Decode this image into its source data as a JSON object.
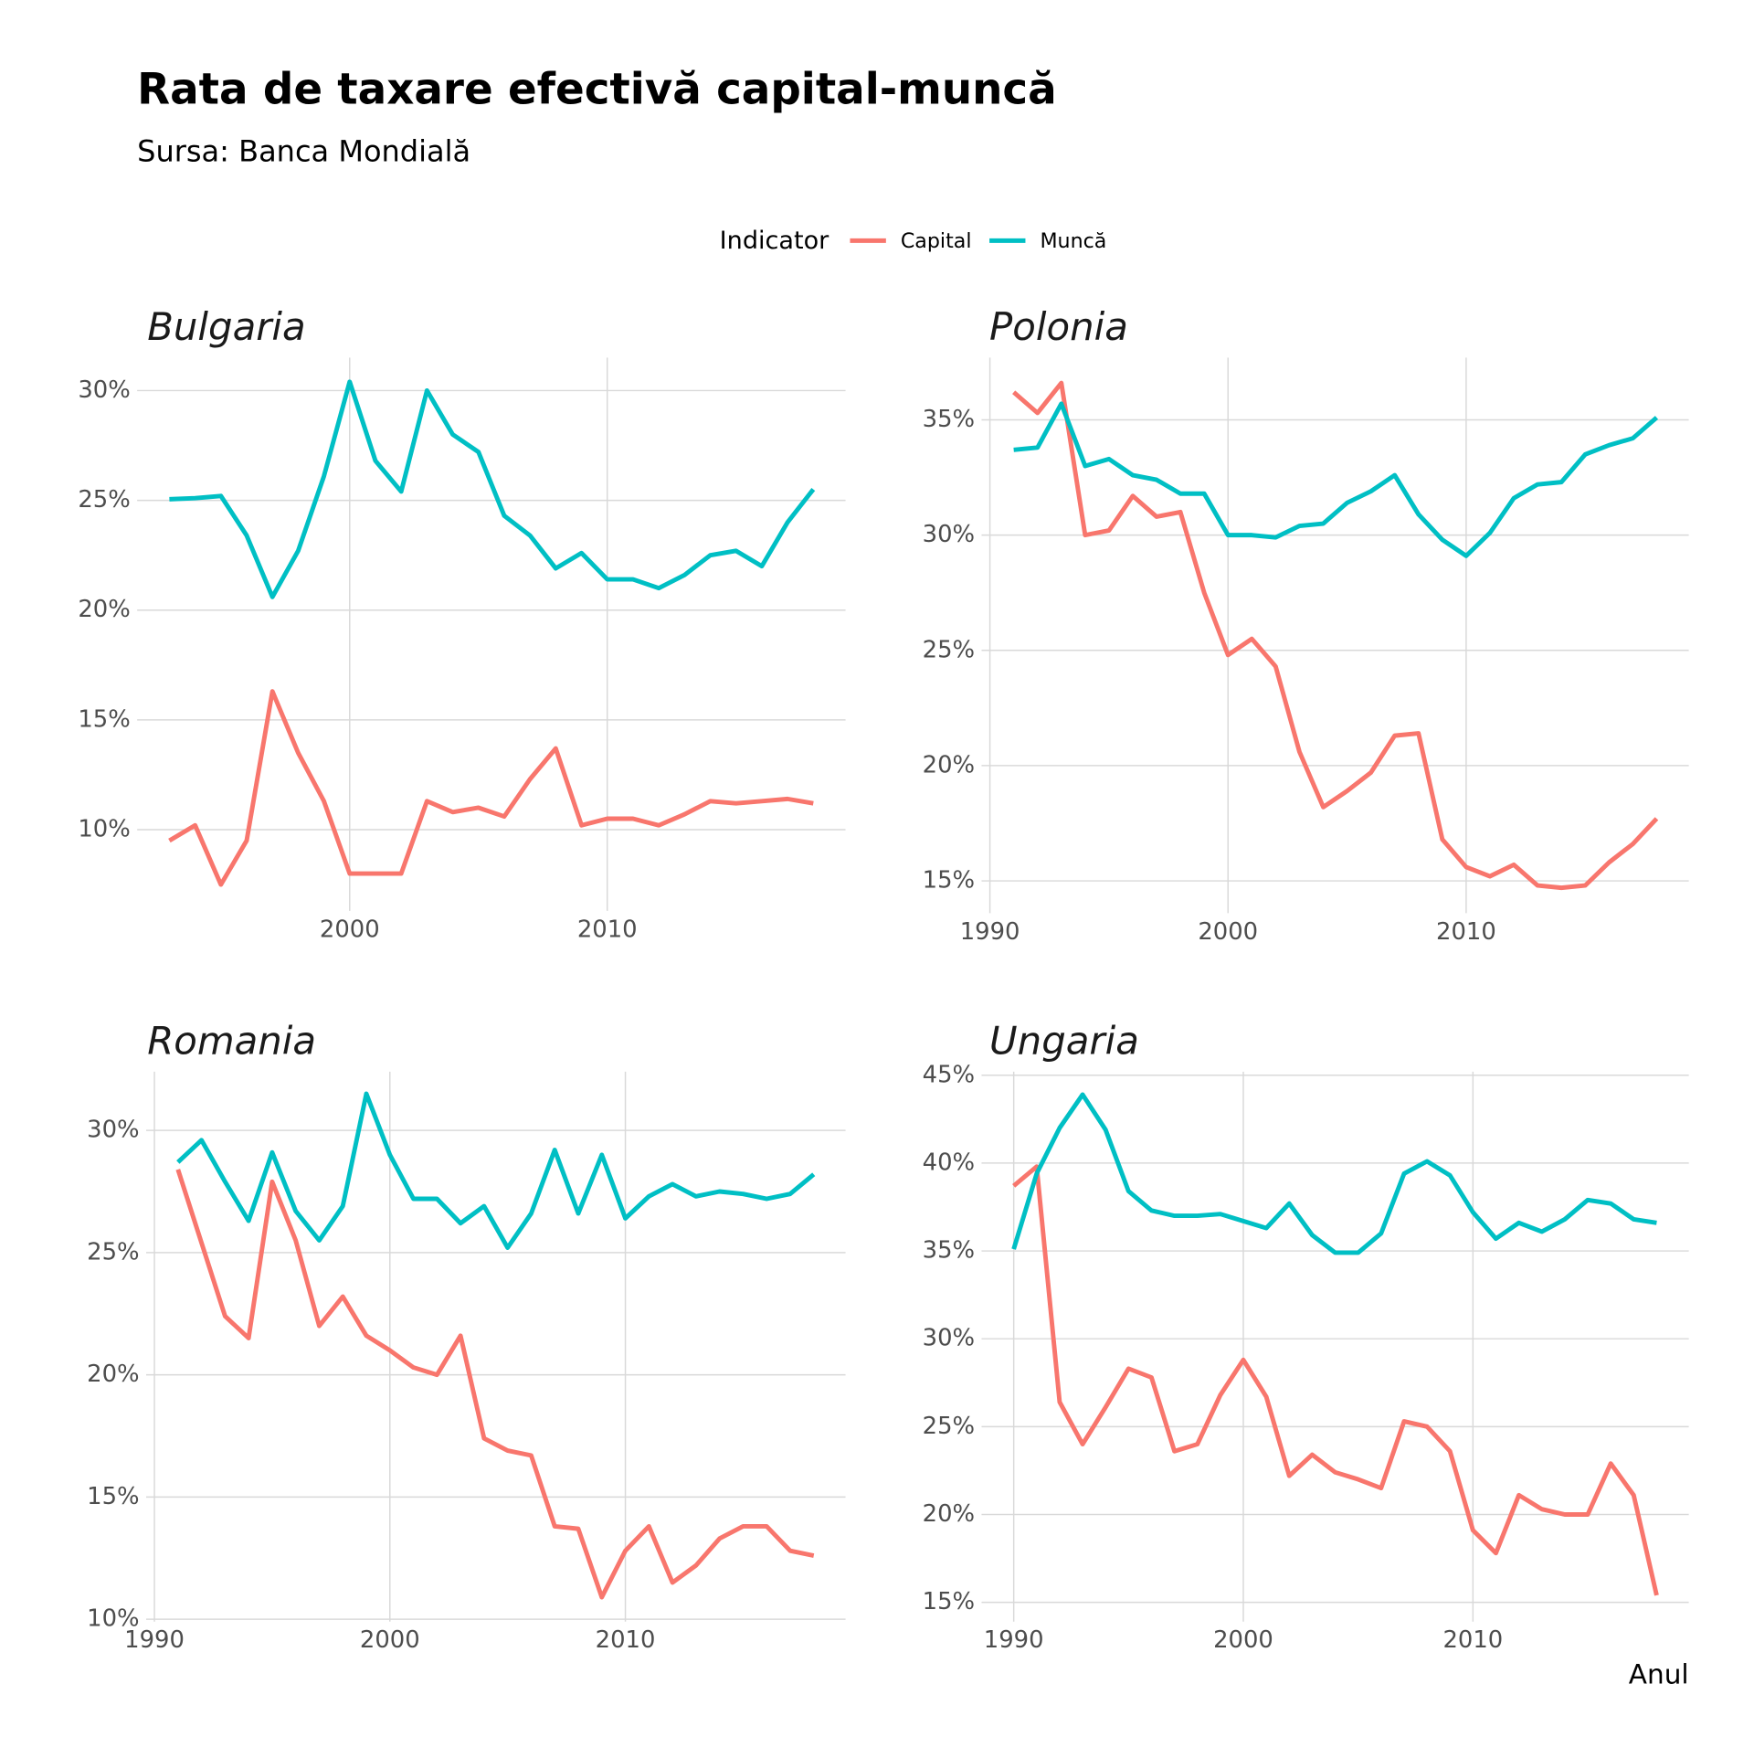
{
  "title": "Rata de taxare efectivă capital-muncă",
  "subtitle": "Sursa: Banca Mondială",
  "x_label": "Anul",
  "legend": {
    "title": "Indicator",
    "entries": [
      {
        "name": "Capital",
        "color": "#f8766d"
      },
      {
        "name": "Muncă",
        "color": "#00bfc4"
      }
    ]
  },
  "chart_data": [
    {
      "type": "line",
      "title": "Bulgaria",
      "x": [
        1993,
        1994,
        1995,
        1996,
        1997,
        1998,
        1999,
        2000,
        2001,
        2002,
        2003,
        2004,
        2005,
        2006,
        2007,
        2008,
        2009,
        2010,
        2011,
        2012,
        2013,
        2014,
        2015,
        2016,
        2017,
        2018
      ],
      "series": [
        {
          "values": [
            9.5,
            10.2,
            7.5,
            9.5,
            16.3,
            13.5,
            11.3,
            8.0,
            8.0,
            8.0,
            11.3,
            10.8,
            11.0,
            10.6,
            12.3,
            13.7,
            10.2,
            10.5,
            10.5,
            10.2,
            10.7,
            11.3,
            11.2,
            11.3,
            11.4,
            11.2
          ]
        },
        {
          "values": [
            25.05,
            25.1,
            25.2,
            23.4,
            20.6,
            22.7,
            26.1,
            30.4,
            26.8,
            25.4,
            30.0,
            28.0,
            27.2,
            24.3,
            23.4,
            21.9,
            22.6,
            21.4,
            21.4,
            21.0,
            21.6,
            22.5,
            22.7,
            22.0,
            24.0,
            25.5
          ]
        }
      ],
      "xlim": [
        1991.75,
        2019.25
      ],
      "ylim": [
        6.3,
        31.5
      ],
      "xticks": [
        2000,
        2010
      ],
      "yticks": [
        {
          "value": 10,
          "label": "10%"
        },
        {
          "value": 15,
          "label": "15%"
        },
        {
          "value": 20,
          "label": "20%"
        },
        {
          "value": 25,
          "label": "25%"
        },
        {
          "value": 30,
          "label": "30%"
        }
      ],
      "grid": true
    },
    {
      "type": "line",
      "title": "Polonia",
      "x": [
        1991,
        1992,
        1993,
        1994,
        1995,
        1996,
        1997,
        1998,
        1999,
        2000,
        2001,
        2002,
        2003,
        2004,
        2005,
        2006,
        2007,
        2008,
        2009,
        2010,
        2011,
        2012,
        2013,
        2014,
        2015,
        2016,
        2017,
        2018
      ],
      "series": [
        {
          "values": [
            36.2,
            35.3,
            36.6,
            30.0,
            30.2,
            31.7,
            30.8,
            31.0,
            27.5,
            24.8,
            25.5,
            24.3,
            20.6,
            18.2,
            18.9,
            19.7,
            21.3,
            21.4,
            16.8,
            15.6,
            15.2,
            15.7,
            14.8,
            14.7,
            14.8,
            15.8,
            16.6,
            17.7
          ]
        },
        {
          "values": [
            33.7,
            33.8,
            35.7,
            33.0,
            33.3,
            32.6,
            32.4,
            31.8,
            31.8,
            30.0,
            30.0,
            29.9,
            30.4,
            30.5,
            31.4,
            31.9,
            32.6,
            30.9,
            29.8,
            29.1,
            30.1,
            31.6,
            32.2,
            32.3,
            33.5,
            33.9,
            34.2,
            35.1
          ]
        }
      ],
      "xlim": [
        1989.65,
        2019.35
      ],
      "ylim": [
        13.6,
        37.7
      ],
      "xticks": [
        1990,
        2000,
        2010
      ],
      "yticks": [
        {
          "value": 15,
          "label": "15%"
        },
        {
          "value": 20,
          "label": "20%"
        },
        {
          "value": 25,
          "label": "25%"
        },
        {
          "value": 30,
          "label": "30%"
        },
        {
          "value": 35,
          "label": "35%"
        }
      ],
      "grid": true
    },
    {
      "type": "line",
      "title": "Romania",
      "x": [
        1991,
        1992,
        1993,
        1994,
        1995,
        1996,
        1997,
        1998,
        1999,
        2000,
        2001,
        2002,
        2003,
        2004,
        2005,
        2006,
        2007,
        2008,
        2009,
        2010,
        2011,
        2012,
        2013,
        2014,
        2015,
        2016,
        2017,
        2018
      ],
      "series": [
        {
          "values": [
            28.4,
            25.4,
            22.4,
            21.5,
            27.9,
            25.5,
            22.0,
            23.2,
            21.6,
            21.0,
            20.3,
            20.0,
            21.6,
            17.4,
            16.9,
            16.7,
            13.8,
            13.7,
            10.9,
            12.8,
            13.8,
            11.5,
            12.2,
            13.3,
            13.8,
            13.8,
            12.8,
            12.6
          ]
        },
        {
          "values": [
            28.7,
            29.6,
            27.9,
            26.3,
            29.1,
            26.7,
            25.5,
            26.9,
            31.5,
            29.0,
            27.2,
            27.2,
            26.2,
            26.9,
            25.2,
            26.6,
            29.2,
            26.6,
            29.0,
            26.4,
            27.3,
            27.8,
            27.3,
            27.5,
            27.4,
            27.2,
            27.4,
            28.2
          ]
        }
      ],
      "xlim": [
        1989.65,
        2019.35
      ],
      "ylim": [
        9.9,
        32.4
      ],
      "xticks": [
        1990,
        2000,
        2010
      ],
      "yticks": [
        {
          "value": 10,
          "label": "10%"
        },
        {
          "value": 15,
          "label": "15%"
        },
        {
          "value": 20,
          "label": "20%"
        },
        {
          "value": 25,
          "label": "25%"
        },
        {
          "value": 30,
          "label": "30%"
        }
      ],
      "grid": true
    },
    {
      "type": "line",
      "title": "Ungaria",
      "x": [
        1990,
        1991,
        1992,
        1993,
        1994,
        1995,
        1996,
        1997,
        1998,
        1999,
        2000,
        2001,
        2002,
        2003,
        2004,
        2005,
        2006,
        2007,
        2008,
        2009,
        2010,
        2011,
        2012,
        2013,
        2014,
        2015,
        2016,
        2017,
        2018
      ],
      "series": [
        {
          "values": [
            38.7,
            39.8,
            26.4,
            24.0,
            26.1,
            28.3,
            27.8,
            23.6,
            24.0,
            26.8,
            28.8,
            26.7,
            22.2,
            23.4,
            22.4,
            22.0,
            21.5,
            25.3,
            25.0,
            23.6,
            19.1,
            17.8,
            21.1,
            20.3,
            20.0,
            20.0,
            22.9,
            21.1,
            15.4
          ]
        },
        {
          "values": [
            35.1,
            39.4,
            42.0,
            43.9,
            41.9,
            38.4,
            37.3,
            37.0,
            37.0,
            37.1,
            36.7,
            36.3,
            37.7,
            35.9,
            34.9,
            34.9,
            36.0,
            39.4,
            40.1,
            39.3,
            37.2,
            35.7,
            36.6,
            36.1,
            36.8,
            37.9,
            37.7,
            36.8,
            36.6
          ]
        }
      ],
      "xlim": [
        1988.6,
        2019.4
      ],
      "ylim": [
        13.9,
        45.2
      ],
      "xticks": [
        1990,
        2000,
        2010
      ],
      "yticks": [
        {
          "value": 15,
          "label": "15%"
        },
        {
          "value": 20,
          "label": "20%"
        },
        {
          "value": 25,
          "label": "25%"
        },
        {
          "value": 30,
          "label": "30%"
        },
        {
          "value": 35,
          "label": "35%"
        },
        {
          "value": 40,
          "label": "40%"
        },
        {
          "value": 45,
          "label": "45%"
        }
      ],
      "grid": true
    }
  ]
}
